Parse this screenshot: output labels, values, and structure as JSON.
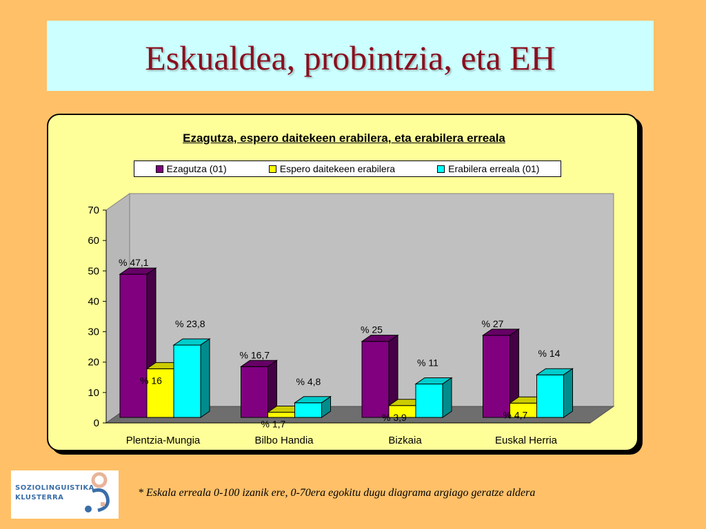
{
  "slide": {
    "title": "Eskualdea, probintzia, eta EH",
    "footnote": "* Eskala erreala 0-100 izanik ere, 0-70era egokitu dugu diagrama argiago geratze aldera",
    "logo": {
      "line1": "SOZIOLINGUISTIKA",
      "line2": "KLUSTERRA"
    }
  },
  "chart_data": {
    "type": "bar",
    "title": "Ezagutza, espero daitekeen erabilera, eta erabilera erreala",
    "categories": [
      "Plentzia-Mungia",
      "Bilbo Handia",
      "Bizkaia",
      "Euskal Herria"
    ],
    "series": [
      {
        "name": "Ezagutza (01)",
        "values": [
          47.1,
          16.7,
          25,
          27
        ],
        "labels": [
          "% 47,1",
          "% 16,7",
          "% 25",
          "% 27"
        ],
        "color": "#800080"
      },
      {
        "name": "Espero daitekeen erabilera",
        "values": [
          16,
          1.7,
          3.9,
          4.7
        ],
        "labels": [
          "% 16",
          "% 1,7",
          "% 3,9",
          "% 4,7"
        ],
        "color": "#ffff00"
      },
      {
        "name": "Erabilera erreala (01)",
        "values": [
          23.8,
          4.8,
          11,
          14
        ],
        "labels": [
          "% 23,8",
          "% 4,8",
          "% 11",
          "% 14"
        ],
        "color": "#00ffff"
      }
    ],
    "ylim": [
      0,
      70
    ],
    "yticks": [
      "0",
      "10",
      "20",
      "30",
      "40",
      "50",
      "60",
      "70"
    ],
    "grid": false,
    "legend_position": "top"
  }
}
